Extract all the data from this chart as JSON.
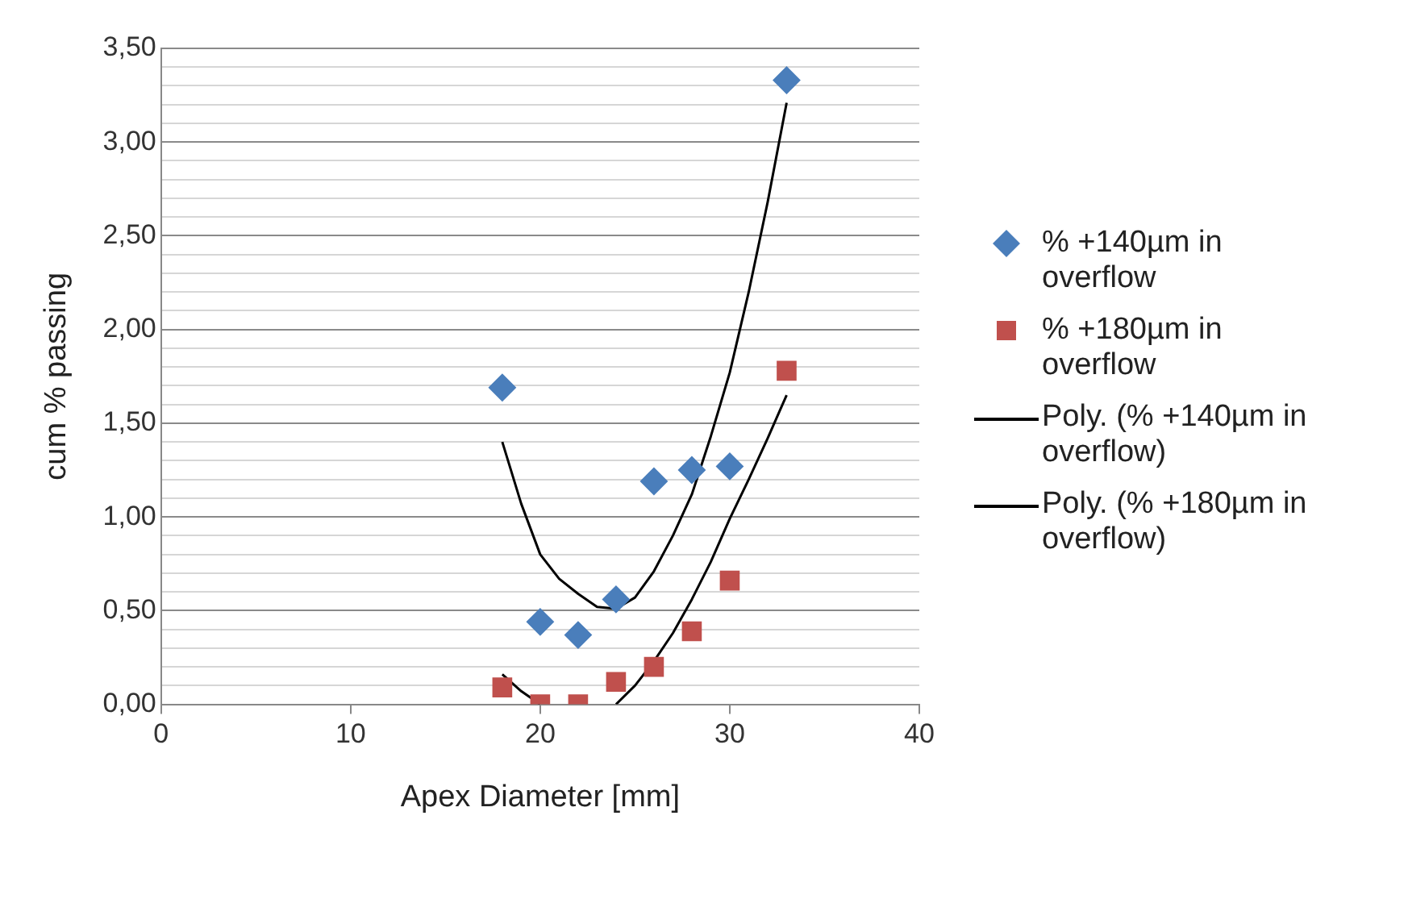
{
  "chart_data": {
    "type": "scatter",
    "xlabel": "Apex Diameter [mm]",
    "ylabel": "cum % passing",
    "xlim": [
      0,
      40
    ],
    "xticks": [
      0,
      10,
      20,
      30,
      40
    ],
    "ylim": [
      0,
      3.5
    ],
    "yticks": [
      {
        "value": 0,
        "label": "0,00"
      },
      {
        "value": 0.1,
        "label": null
      },
      {
        "value": 0.2,
        "label": null
      },
      {
        "value": 0.3,
        "label": null
      },
      {
        "value": 0.4,
        "label": null
      },
      {
        "value": 0.5,
        "label": "0,50"
      },
      {
        "value": 0.6,
        "label": null
      },
      {
        "value": 0.7,
        "label": null
      },
      {
        "value": 0.8,
        "label": null
      },
      {
        "value": 0.9,
        "label": null
      },
      {
        "value": 1,
        "label": "1,00"
      },
      {
        "value": 1.1,
        "label": null
      },
      {
        "value": 1.2,
        "label": null
      },
      {
        "value": 1.3,
        "label": null
      },
      {
        "value": 1.4,
        "label": null
      },
      {
        "value": 1.5,
        "label": "1,50"
      },
      {
        "value": 1.6,
        "label": null
      },
      {
        "value": 1.7,
        "label": null
      },
      {
        "value": 1.8,
        "label": null
      },
      {
        "value": 1.9,
        "label": null
      },
      {
        "value": 2,
        "label": "2,00"
      },
      {
        "value": 2.1,
        "label": null
      },
      {
        "value": 2.2,
        "label": null
      },
      {
        "value": 2.3,
        "label": null
      },
      {
        "value": 2.4,
        "label": null
      },
      {
        "value": 2.5,
        "label": "2,50"
      },
      {
        "value": 2.6,
        "label": null
      },
      {
        "value": 2.7,
        "label": null
      },
      {
        "value": 2.8,
        "label": null
      },
      {
        "value": 2.9,
        "label": null
      },
      {
        "value": 3,
        "label": "3,00"
      },
      {
        "value": 3.1,
        "label": null
      },
      {
        "value": 3.2,
        "label": null
      },
      {
        "value": 3.3,
        "label": null
      },
      {
        "value": 3.4,
        "label": null
      },
      {
        "value": 3.5,
        "label": "3,50"
      }
    ],
    "grid": "y",
    "legend": "right",
    "series": [
      {
        "name": "% +140µm in overflow",
        "type": "scatter",
        "marker": "diamond",
        "color": "#4a7ebb",
        "x": [
          18,
          20,
          22,
          24,
          26,
          28,
          30,
          33
        ],
        "values": [
          1.69,
          0.44,
          0.37,
          0.56,
          1.19,
          1.25,
          1.27,
          3.33
        ]
      },
      {
        "name": "% +180µm in overflow",
        "type": "scatter",
        "marker": "square",
        "color": "#c0504d",
        "x": [
          18,
          20,
          22,
          24,
          26,
          28,
          30,
          33
        ],
        "values": [
          0.09,
          0,
          0,
          0.12,
          0.2,
          0.39,
          0.66,
          1.78
        ]
      },
      {
        "name": "Poly. (% +140µm in overflow)",
        "type": "line",
        "marker": "none",
        "line_style": "solid",
        "color": "#000000",
        "x": [
          18,
          19,
          20,
          21,
          22,
          23,
          24,
          25,
          26,
          27,
          28,
          29,
          30,
          31,
          32,
          33
        ],
        "values": [
          1.4,
          1.07,
          0.8,
          0.67,
          0.59,
          0.52,
          0.51,
          0.57,
          0.71,
          0.9,
          1.12,
          1.43,
          1.77,
          2.2,
          2.68,
          3.21
        ]
      },
      {
        "name": "Poly. (% +180µm in overflow)",
        "type": "line",
        "marker": "none",
        "line_style": "solid",
        "color": "#000000",
        "x": [
          18,
          19,
          20,
          22,
          24,
          25,
          26,
          27,
          28,
          29,
          30,
          31,
          32,
          33
        ],
        "values": [
          0.16,
          0.07,
          0,
          null,
          0,
          0.1,
          0.23,
          0.38,
          0.56,
          0.76,
          0.99,
          1.2,
          1.42,
          1.65
        ]
      }
    ]
  }
}
